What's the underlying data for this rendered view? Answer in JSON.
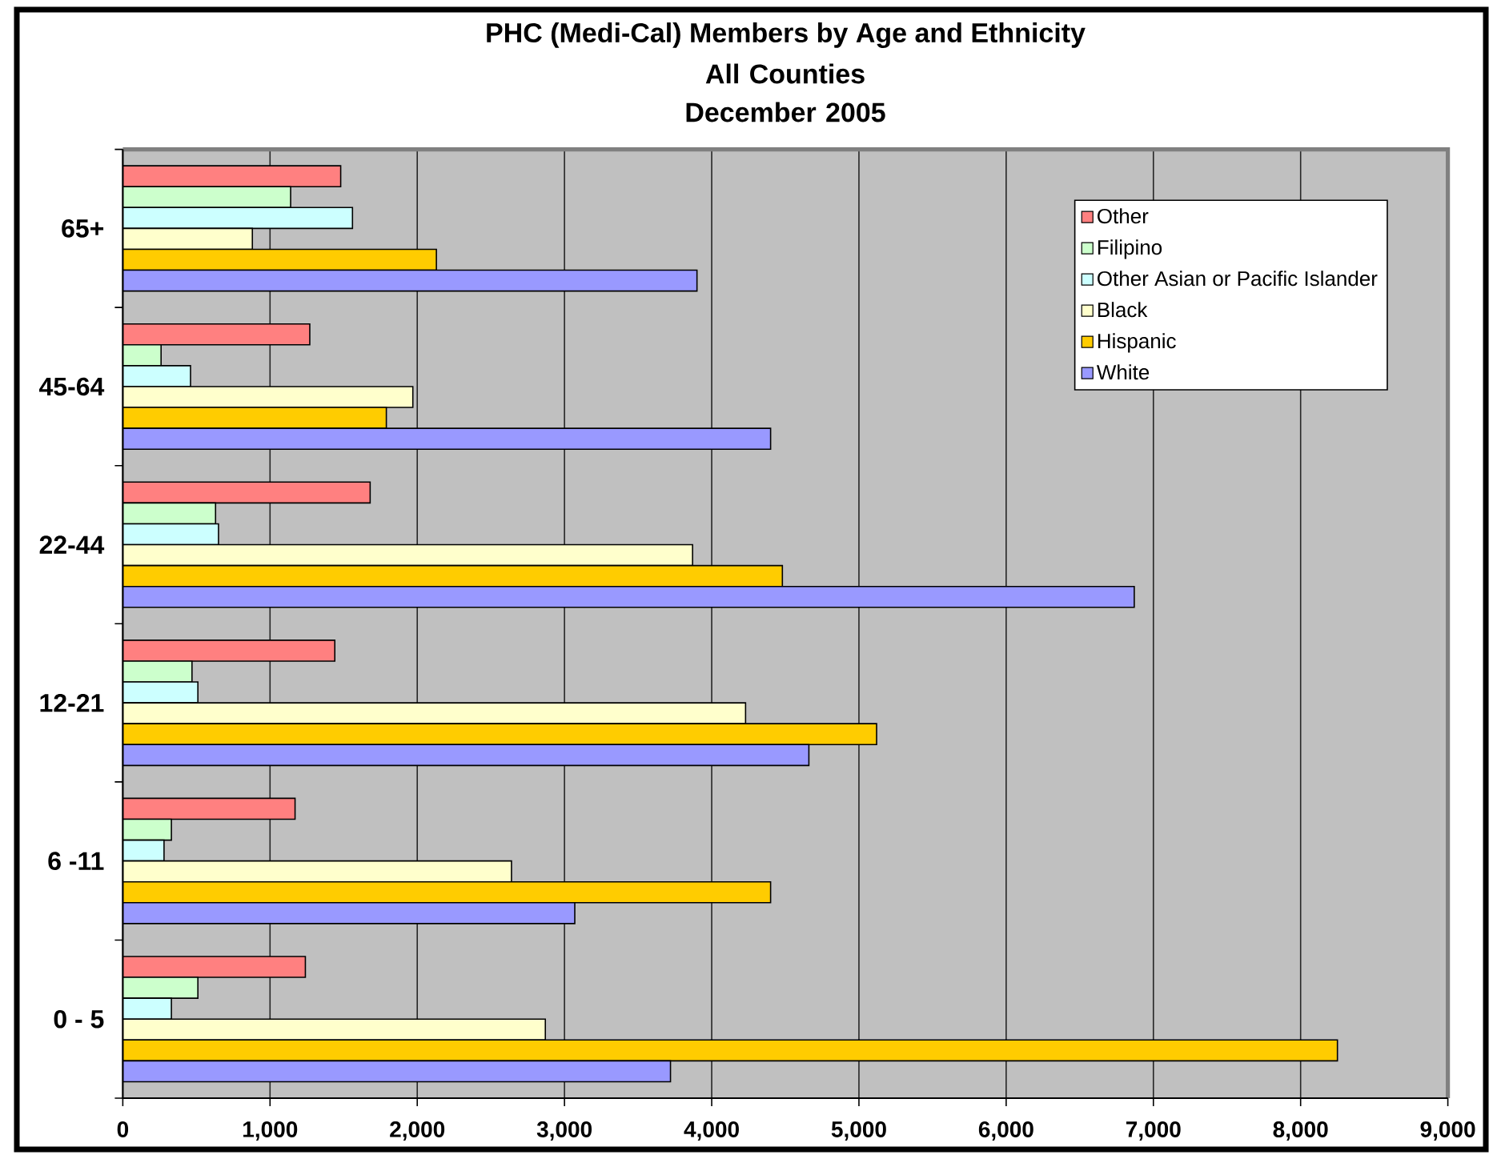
{
  "chart_data": {
    "type": "bar",
    "orientation": "horizontal",
    "title": "PHC (Medi-Cal) Members by Age and Ethnicity",
    "subtitle": "All Counties December 2005",
    "categories": [
      "65+",
      "45-64",
      "22-44",
      "12-21",
      "6 -11",
      "0 - 5"
    ],
    "series": [
      {
        "name": "Other",
        "color": "#ff8080",
        "values": [
          1480,
          1270,
          1680,
          1440,
          1170,
          1240
        ]
      },
      {
        "name": "Filipino",
        "color": "#ccffcc",
        "values": [
          1140,
          260,
          630,
          470,
          330,
          510
        ]
      },
      {
        "name": "Other Asian or Pacific Islander",
        "color": "#ccffff",
        "values": [
          1560,
          460,
          650,
          510,
          280,
          330
        ]
      },
      {
        "name": "Black",
        "color": "#ffffcc",
        "values": [
          880,
          1970,
          3870,
          4230,
          2640,
          2870
        ]
      },
      {
        "name": "Hispanic",
        "color": "#ffcc00",
        "values": [
          2130,
          1790,
          4480,
          5120,
          4400,
          8250
        ]
      },
      {
        "name": "White",
        "color": "#9999ff",
        "values": [
          3900,
          4400,
          6870,
          4660,
          3070,
          3720
        ]
      }
    ],
    "xlim": [
      0,
      9000
    ],
    "xticks": [
      0,
      {
        "value": 1000,
        "label": "1,000"
      },
      {
        "value": 2000,
        "label": "2,000"
      },
      {
        "value": 3000,
        "label": "3,000"
      },
      {
        "value": 4000,
        "label": "4,000"
      },
      {
        "value": 5000,
        "label": "5,000"
      },
      {
        "value": 6000,
        "label": "6,000"
      },
      {
        "value": 7000,
        "label": "7,000"
      },
      {
        "value": 8000,
        "label": "8,000"
      },
      {
        "value": 9000,
        "label": "9,000"
      }
    ],
    "grid": "x",
    "legend": "top right"
  }
}
